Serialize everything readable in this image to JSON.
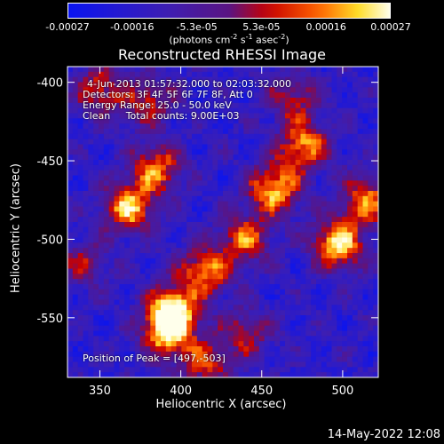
{
  "colorbar": {
    "tick_labels": [
      "-0.00027",
      "-0.00016",
      "-5.3e-05",
      "5.3e-05",
      "0.00016",
      "0.00027"
    ],
    "units": "(photons cm",
    "units_sup1": "-2",
    "units_mid": " s",
    "units_sup2": "-1",
    "units_end": " asec",
    "units_sup3": "-2",
    "units_close": ")",
    "range": [
      -0.00027,
      0.00027
    ]
  },
  "chart_data": {
    "type": "heatmap",
    "title": "Reconstructed RHESSI Image",
    "xlabel": "Heliocentric X (arcsec)",
    "ylabel": "Heliocentric Y (arcsec)",
    "xlim": [
      330,
      522
    ],
    "ylim": [
      -390,
      -588
    ],
    "x_ticks": [
      350,
      400,
      450,
      500
    ],
    "y_ticks": [
      -400,
      -450,
      -500,
      -550
    ],
    "x_tick_labels": [
      "350",
      "400",
      "450",
      "500"
    ],
    "y_tick_labels": [
      "-400",
      "-450",
      "-500",
      "-550"
    ],
    "peak": [
      497,
      -503
    ],
    "sources": [
      {
        "x": 395,
        "y": -545,
        "amp": 1.0
      },
      {
        "x": 392,
        "y": -560,
        "amp": 0.85
      },
      {
        "x": 368,
        "y": -480,
        "amp": 0.9
      },
      {
        "x": 385,
        "y": -455,
        "amp": 0.75
      },
      {
        "x": 415,
        "y": -520,
        "amp": 0.8
      },
      {
        "x": 440,
        "y": -500,
        "amp": 0.7
      },
      {
        "x": 458,
        "y": -468,
        "amp": 0.9
      },
      {
        "x": 476,
        "y": -440,
        "amp": 0.8
      },
      {
        "x": 497,
        "y": -503,
        "amp": 1.0
      },
      {
        "x": 515,
        "y": -475,
        "amp": 0.75
      },
      {
        "x": 350,
        "y": -405,
        "amp": 0.6
      },
      {
        "x": 380,
        "y": -412,
        "amp": 0.55
      },
      {
        "x": 470,
        "y": -410,
        "amp": 0.5
      },
      {
        "x": 415,
        "y": -580,
        "amp": 0.6
      },
      {
        "x": 340,
        "y": -515,
        "amp": 0.45
      },
      {
        "x": 440,
        "y": -560,
        "amp": 0.5
      }
    ]
  },
  "annotations": {
    "time_range": "4-Jun-2013 01:57:32.000 to 02:03:32.000",
    "detectors": "Detectors: 3F 4F 5F 6F 7F 8F, Att 0",
    "energy": "Energy Range: 25.0 - 50.0 keV",
    "clean": "Clean     Total counts: 9.00E+03",
    "peak": "Position of Peak = [497,-503]"
  },
  "timestamp": "14-May-2022 12:08"
}
